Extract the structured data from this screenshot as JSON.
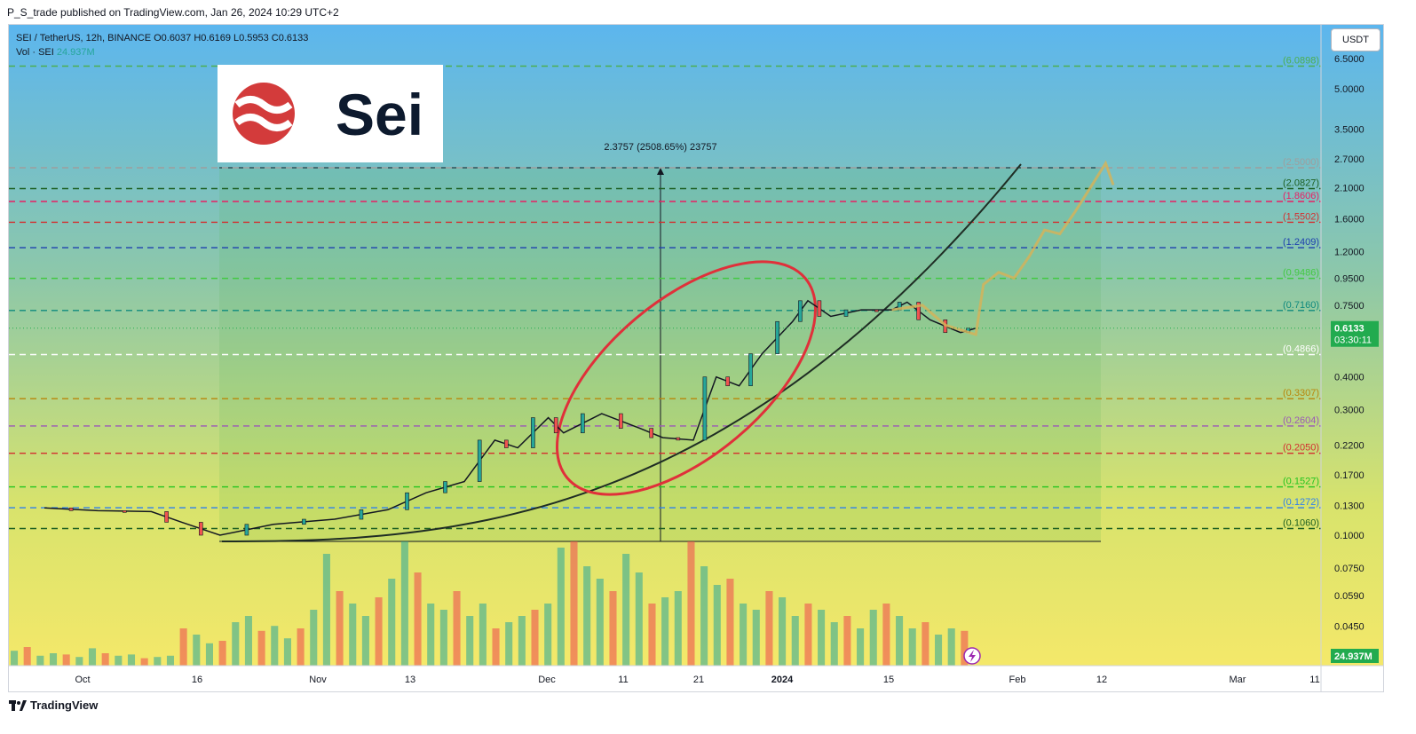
{
  "header": {
    "published": "P_S_trade published on TradingView.com, Jan 26, 2024 10:29 UTC+2",
    "symbol_line": "SEI / TetherUS, 12h, BINANCE  O0.6037  H0.6169  L0.5953  C0.6133",
    "vol_label": "Vol · SEI",
    "vol_value": "24.937M"
  },
  "currency_button": "USDT",
  "logo_text": "Sei",
  "footer_brand": "TradingView",
  "measure_label": "2.3757 (2508.65%) 23757",
  "colors": {
    "up": "#26a69a",
    "down": "#ef5350",
    "projection": "#d4b35a",
    "price_badge": "#22ab4f",
    "ellipse": "#e0303a",
    "curve": "#1f2d24"
  },
  "chart_data": {
    "type": "candlestick",
    "title": "SEI / TetherUS, 12h, BINANCE",
    "y_scale": "log",
    "ylim": [
      0.03,
      7.5
    ],
    "y_ticks": [
      "6.5000",
      "5.0000",
      "3.5000",
      "2.7000",
      "2.1000",
      "1.6000",
      "1.2000",
      "0.9500",
      "0.7500",
      "0.4000",
      "0.3000",
      "0.2200",
      "0.1700",
      "0.1300",
      "0.1000",
      "0.0750",
      "0.0590",
      "0.0450"
    ],
    "x_ticks": [
      "Oct",
      "16",
      "Nov",
      "13",
      "Dec",
      "11",
      "21",
      "2024",
      "15",
      "Feb",
      "12",
      "Mar",
      "11"
    ],
    "last_price": "0.6133",
    "countdown": "03:30:11",
    "volume_badge": "24.937M",
    "fib_levels": [
      {
        "label": "(6.0898)",
        "value": 6.0898,
        "color": "#4caf50"
      },
      {
        "label": "(2.5000)",
        "value": 2.5,
        "color": "#9e9e9e"
      },
      {
        "label": "(2.0827)",
        "value": 2.0827,
        "color": "#1b5e20"
      },
      {
        "label": "(1.8606)",
        "value": 1.8606,
        "color": "#e91e63"
      },
      {
        "label": "(1.5502)",
        "value": 1.5502,
        "color": "#d32f2f"
      },
      {
        "label": "(1.2409)",
        "value": 1.2409,
        "color": "#1e40af"
      },
      {
        "label": "(0.9486)",
        "value": 0.9486,
        "color": "#43c943"
      },
      {
        "label": "(0.7160)",
        "value": 0.716,
        "color": "#0f8a7e"
      },
      {
        "label": "(0.4866)",
        "value": 0.4866,
        "color": "#ffffff"
      },
      {
        "label": "(0.3307)",
        "value": 0.3307,
        "color": "#b8860b"
      },
      {
        "label": "(0.2604)",
        "value": 0.2604,
        "color": "#9b59b6"
      },
      {
        "label": "(0.2050)",
        "value": 0.205,
        "color": "#d32f2f"
      },
      {
        "label": "(0.1527)",
        "value": 0.1527,
        "color": "#22c51e"
      },
      {
        "label": "(0.1272)",
        "value": 0.1272,
        "color": "#2f80ed"
      },
      {
        "label": "(0.1060)",
        "value": 0.106,
        "color": "#1b5e20"
      }
    ],
    "price_path": [
      {
        "date": "2023-09-26",
        "price": 0.127
      },
      {
        "date": "2023-10-03",
        "price": 0.124
      },
      {
        "date": "2023-10-10",
        "price": 0.123
      },
      {
        "date": "2023-10-14",
        "price": 0.112
      },
      {
        "date": "2023-10-19",
        "price": 0.1
      },
      {
        "date": "2023-10-26",
        "price": 0.11
      },
      {
        "date": "2023-11-03",
        "price": 0.115
      },
      {
        "date": "2023-11-10",
        "price": 0.125
      },
      {
        "date": "2023-11-15",
        "price": 0.145
      },
      {
        "date": "2023-11-20",
        "price": 0.16
      },
      {
        "date": "2023-11-24",
        "price": 0.23
      },
      {
        "date": "2023-11-27",
        "price": 0.215
      },
      {
        "date": "2023-12-01",
        "price": 0.28
      },
      {
        "date": "2023-12-03",
        "price": 0.245
      },
      {
        "date": "2023-12-08",
        "price": 0.29
      },
      {
        "date": "2023-12-13",
        "price": 0.255
      },
      {
        "date": "2023-12-16",
        "price": 0.235
      },
      {
        "date": "2023-12-20",
        "price": 0.23
      },
      {
        "date": "2023-12-23",
        "price": 0.4
      },
      {
        "date": "2023-12-26",
        "price": 0.37
      },
      {
        "date": "2023-12-29",
        "price": 0.49
      },
      {
        "date": "2024-01-02",
        "price": 0.65
      },
      {
        "date": "2024-01-04",
        "price": 0.78
      },
      {
        "date": "2024-01-07",
        "price": 0.68
      },
      {
        "date": "2024-01-11",
        "price": 0.72
      },
      {
        "date": "2024-01-15",
        "price": 0.72
      },
      {
        "date": "2024-01-17",
        "price": 0.77
      },
      {
        "date": "2024-01-20",
        "price": 0.66
      },
      {
        "date": "2024-01-24",
        "price": 0.59
      },
      {
        "date": "2024-01-26",
        "price": 0.6133
      }
    ],
    "projection_path": [
      {
        "date": "2024-01-15",
        "price": 0.72
      },
      {
        "date": "2024-01-19",
        "price": 0.75
      },
      {
        "date": "2024-01-22",
        "price": 0.63
      },
      {
        "date": "2024-01-26",
        "price": 0.58
      },
      {
        "date": "2024-01-27",
        "price": 0.9
      },
      {
        "date": "2024-01-29",
        "price": 1.0
      },
      {
        "date": "2024-01-31",
        "price": 0.95
      },
      {
        "date": "2024-02-02",
        "price": 1.15
      },
      {
        "date": "2024-02-04",
        "price": 1.45
      },
      {
        "date": "2024-02-06",
        "price": 1.4
      },
      {
        "date": "2024-02-08",
        "price": 1.7
      },
      {
        "date": "2024-02-10",
        "price": 2.1
      },
      {
        "date": "2024-02-12",
        "price": 2.6
      },
      {
        "date": "2024-02-13",
        "price": 2.15
      }
    ],
    "volume_series": [
      0.12,
      0.15,
      0.08,
      0.1,
      0.09,
      0.07,
      0.14,
      0.1,
      0.08,
      0.09,
      0.06,
      0.07,
      0.08,
      0.3,
      0.25,
      0.18,
      0.2,
      0.35,
      0.4,
      0.28,
      0.32,
      0.22,
      0.3,
      0.45,
      0.9,
      0.6,
      0.5,
      0.4,
      0.55,
      0.7,
      1.0,
      0.75,
      0.5,
      0.45,
      0.6,
      0.4,
      0.5,
      0.3,
      0.35,
      0.4,
      0.45,
      0.5,
      0.95,
      1.0,
      0.8,
      0.7,
      0.6,
      0.9,
      0.75,
      0.5,
      0.55,
      0.6,
      1.0,
      0.8,
      0.65,
      0.7,
      0.5,
      0.45,
      0.6,
      0.55,
      0.4,
      0.5,
      0.45,
      0.35,
      0.4,
      0.3,
      0.45,
      0.5,
      0.4,
      0.3,
      0.35,
      0.25,
      0.3,
      0.28
    ]
  }
}
